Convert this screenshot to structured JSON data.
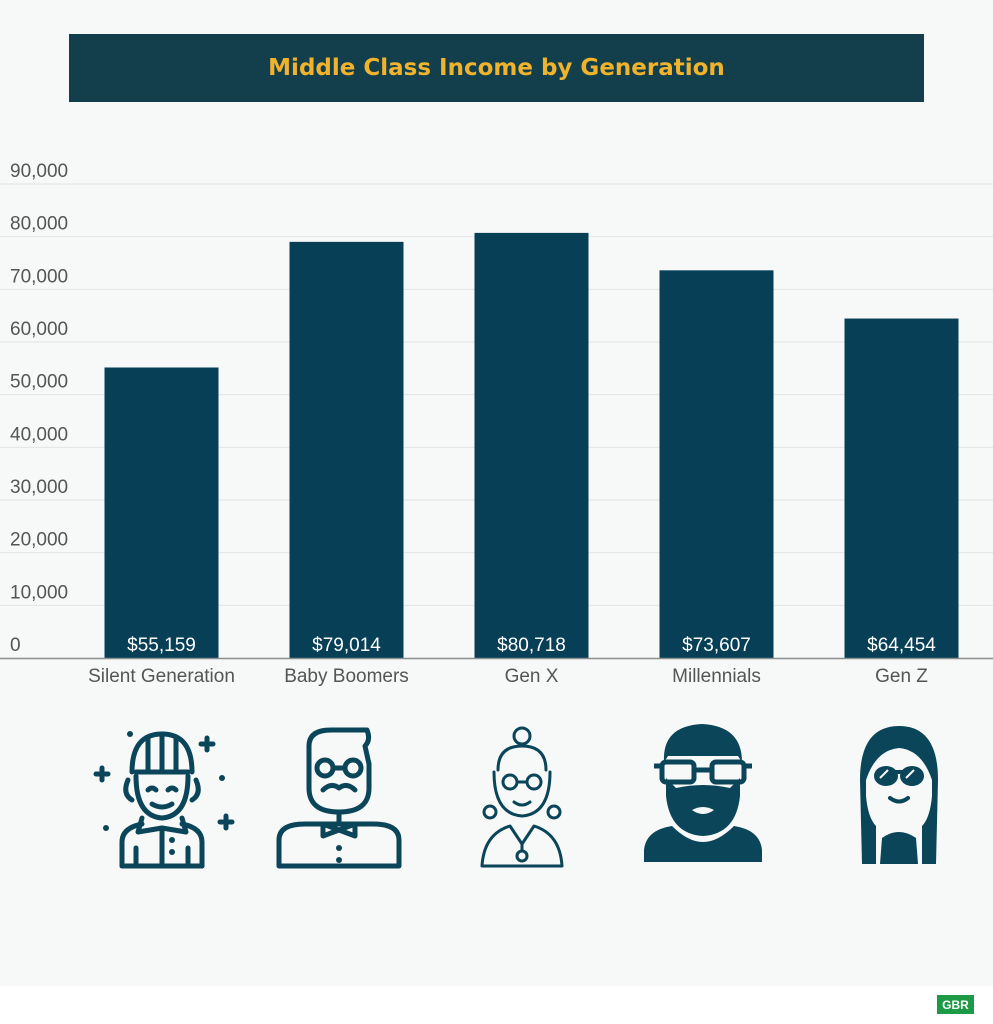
{
  "title": "Middle Class Income by Generation",
  "badge": "GBR",
  "colors": {
    "title_bg": "#123f4b",
    "title_text": "#f0b32b",
    "bar": "#073f57",
    "icon": "#0b4559",
    "badge_bg": "#1d9a45"
  },
  "icons": [
    "elderly-woman-icon",
    "hipster-man-icon",
    "woman-with-glasses-icon",
    "bearded-man-icon",
    "girl-with-sunglasses-icon"
  ],
  "chart_data": {
    "type": "bar",
    "title": "Middle Class Income by Generation",
    "categories": [
      "Silent Generation",
      "Baby Boomers",
      "Gen X",
      "Millennials",
      "Gen Z"
    ],
    "values": [
      55159,
      79014,
      80718,
      73607,
      64454
    ],
    "value_labels": [
      "$55,159",
      "$79,014",
      "$80,718",
      "$73,607",
      "$64,454"
    ],
    "yticks": [
      "0",
      "10,000",
      "20,000",
      "30,000",
      "40,000",
      "50,000",
      "60,000",
      "70,000",
      "80,000",
      "90,000"
    ],
    "ylim": [
      0,
      90000
    ],
    "grid": true,
    "legend": "none"
  }
}
